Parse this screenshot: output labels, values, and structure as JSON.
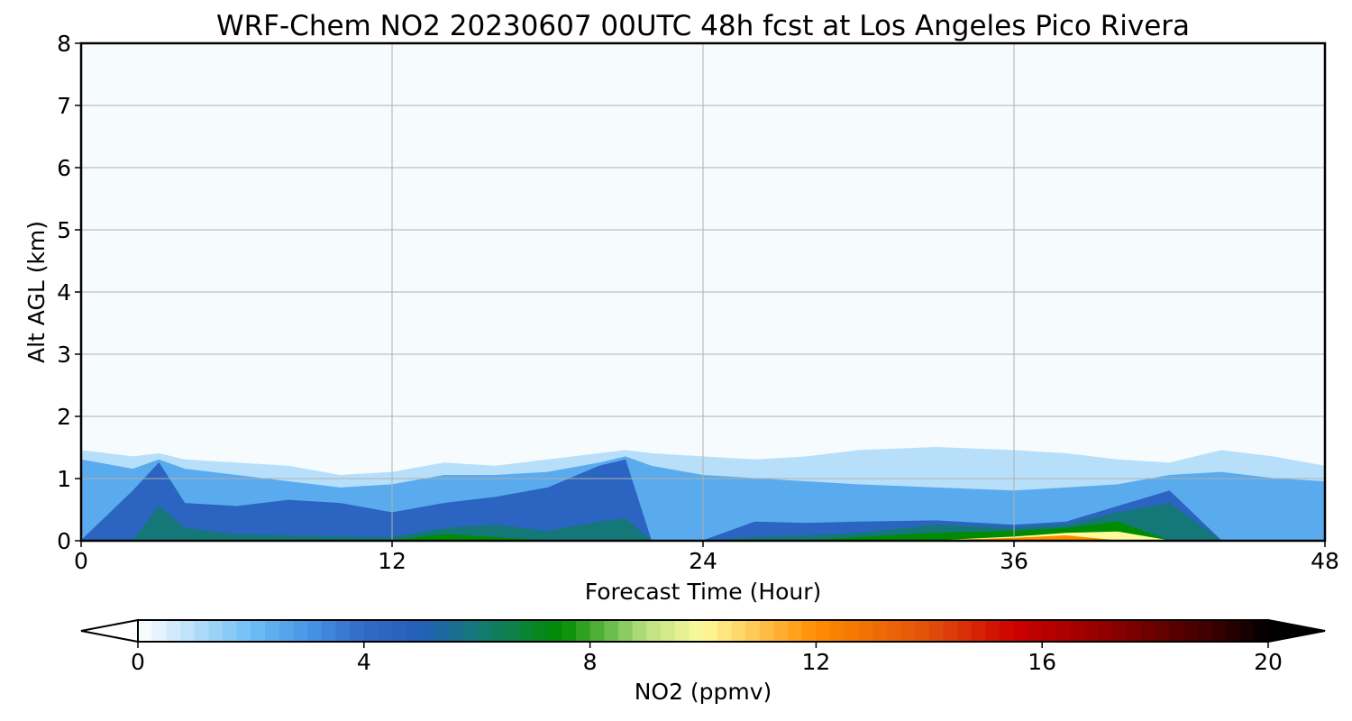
{
  "chart_data": {
    "type": "heatmap",
    "title": "WRF-Chem NO2  20230607 00UTC 48h fcst at Los Angeles Pico Rivera",
    "xlabel": "Forecast Time (Hour)",
    "ylabel": "Alt AGL (km)",
    "xlim": [
      0,
      48
    ],
    "ylim": [
      0,
      8
    ],
    "xticks": [
      "0",
      "12",
      "24",
      "36",
      "48"
    ],
    "yticks": [
      "0",
      "1",
      "2",
      "3",
      "4",
      "5",
      "6",
      "7",
      "8"
    ],
    "grid": true,
    "colorbar": {
      "label": "NO2  (ppmv)",
      "range": [
        0,
        20
      ],
      "ticks": [
        "0",
        "4",
        "8",
        "12",
        "16",
        "20"
      ],
      "extend": "both",
      "orientation": "horizontal"
    },
    "field": {
      "units": "ppmv",
      "hours": [
        0,
        2,
        3,
        4,
        6,
        8,
        10,
        12,
        14,
        16,
        18,
        20,
        21,
        22,
        24,
        26,
        28,
        30,
        33,
        36,
        38,
        40,
        42,
        44,
        46,
        48
      ],
      "layers": [
        {
          "level": 1.0,
          "top": [
            1.45,
            1.35,
            1.4,
            1.3,
            1.25,
            1.2,
            1.05,
            1.1,
            1.25,
            1.2,
            1.3,
            1.4,
            1.45,
            1.4,
            1.35,
            1.3,
            1.35,
            1.45,
            1.5,
            1.45,
            1.4,
            1.3,
            1.25,
            1.45,
            1.35,
            1.2
          ]
        },
        {
          "level": 2.5,
          "top": [
            1.3,
            1.15,
            1.3,
            1.15,
            1.05,
            0.95,
            0.85,
            0.9,
            1.05,
            1.05,
            1.1,
            1.25,
            1.35,
            1.2,
            1.05,
            1.0,
            0.95,
            0.9,
            0.85,
            0.8,
            0.85,
            0.9,
            1.05,
            1.1,
            1.0,
            0.95
          ]
        },
        {
          "level": 4.5,
          "top": [
            0.0,
            0.8,
            1.25,
            0.6,
            0.55,
            0.65,
            0.6,
            0.45,
            0.6,
            0.7,
            0.85,
            1.2,
            1.3,
            0.0,
            0.0,
            0.3,
            0.28,
            0.3,
            0.32,
            0.25,
            0.3,
            0.55,
            0.8,
            0.0,
            0.0,
            0.0
          ]
        },
        {
          "level": 6.0,
          "top": [
            0.0,
            0.0,
            0.55,
            0.2,
            0.1,
            0.08,
            0.06,
            0.05,
            0.2,
            0.25,
            0.15,
            0.3,
            0.35,
            0.0,
            0.0,
            0.05,
            0.08,
            0.12,
            0.25,
            0.2,
            0.25,
            0.45,
            0.6,
            0.0,
            0.0,
            0.0
          ]
        },
        {
          "level": 7.5,
          "top": [
            0.0,
            0.0,
            0.0,
            0.0,
            0.0,
            0.0,
            0.0,
            0.0,
            0.1,
            0.05,
            0.0,
            0.0,
            0.0,
            0.0,
            0.0,
            0.0,
            0.0,
            0.05,
            0.12,
            0.15,
            0.2,
            0.3,
            0.0,
            0.0,
            0.0,
            0.0
          ]
        },
        {
          "level": 10.0,
          "top": [
            0.0,
            0.0,
            0.0,
            0.0,
            0.0,
            0.0,
            0.0,
            0.0,
            0.0,
            0.0,
            0.0,
            0.0,
            0.0,
            0.0,
            0.0,
            0.0,
            0.0,
            0.0,
            0.0,
            0.06,
            0.12,
            0.14,
            0.0,
            0.0,
            0.0,
            0.0
          ]
        },
        {
          "level": 12.0,
          "top": [
            0.0,
            0.0,
            0.0,
            0.0,
            0.0,
            0.0,
            0.0,
            0.0,
            0.0,
            0.0,
            0.0,
            0.0,
            0.0,
            0.0,
            0.0,
            0.0,
            0.0,
            0.0,
            0.0,
            0.04,
            0.08,
            0.0,
            0.0,
            0.0,
            0.0,
            0.0
          ]
        }
      ]
    }
  }
}
